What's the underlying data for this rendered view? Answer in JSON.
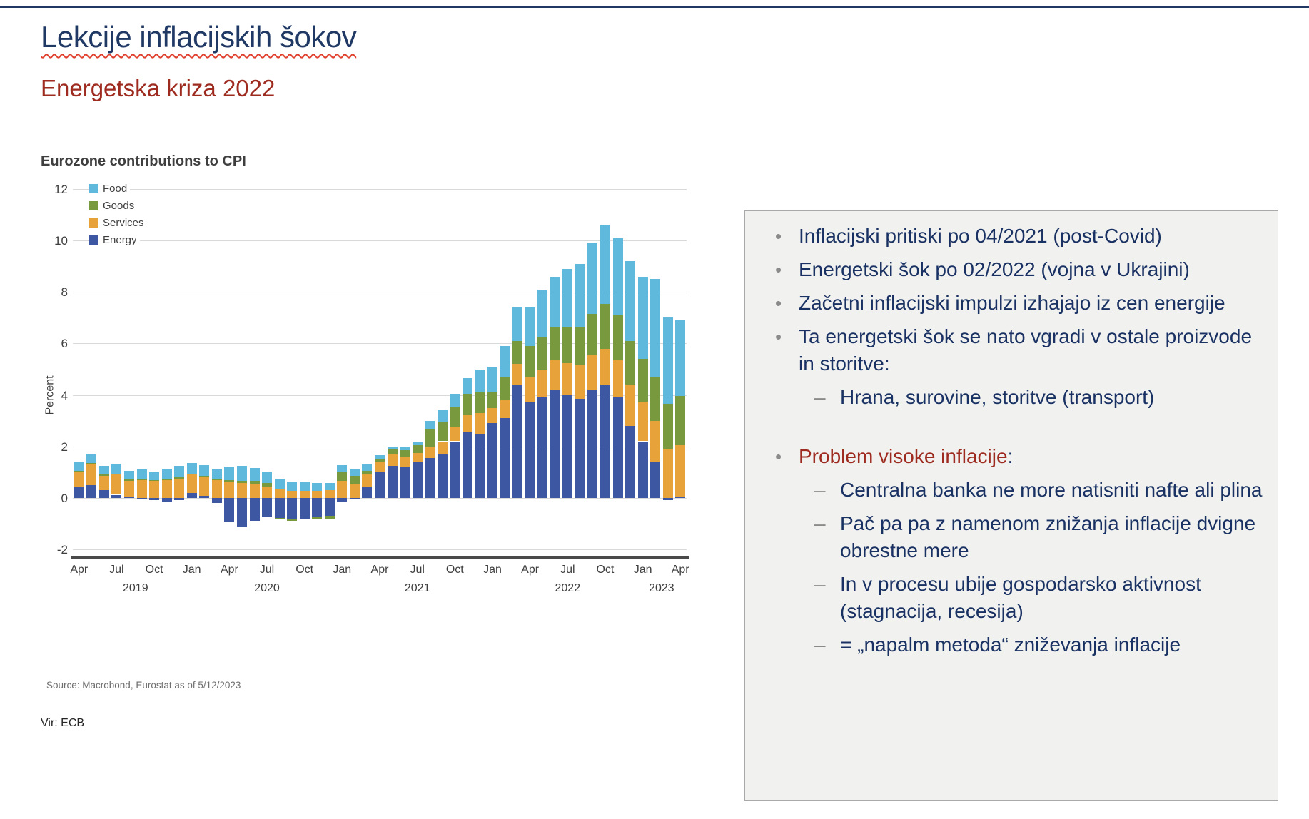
{
  "slide": {
    "title": "Lekcije inflacijskih šokov",
    "subtitle": "Energetska kriza 2022",
    "footnote": "Vir: ECB",
    "accent_navy": "#1F3864",
    "accent_red": "#9E2B1F"
  },
  "chart_data": {
    "type": "bar",
    "stacked": true,
    "title": "Eurozone contributions to CPI",
    "ylabel": "Percent",
    "ylim": [
      -2,
      12
    ],
    "yticks": [
      12,
      10,
      8,
      6,
      4,
      2,
      0,
      -2
    ],
    "grid": true,
    "legend_position": "top-left",
    "source": "Source: Macrobond, Eurostat as of 5/12/2023",
    "xtick_every": 3,
    "categories": [
      "Apr 2019",
      "May 2019",
      "Jun 2019",
      "Jul 2019",
      "Aug 2019",
      "Sep 2019",
      "Oct 2019",
      "Nov 2019",
      "Dec 2019",
      "Jan 2020",
      "Feb 2020",
      "Mar 2020",
      "Apr 2020",
      "May 2020",
      "Jun 2020",
      "Jul 2020",
      "Aug 2020",
      "Sep 2020",
      "Oct 2020",
      "Nov 2020",
      "Dec 2020",
      "Jan 2021",
      "Feb 2021",
      "Mar 2021",
      "Apr 2021",
      "May 2021",
      "Jun 2021",
      "Jul 2021",
      "Aug 2021",
      "Sep 2021",
      "Oct 2021",
      "Nov 2021",
      "Dec 2021",
      "Jan 2022",
      "Feb 2022",
      "Mar 2022",
      "Apr 2022",
      "May 2022",
      "Jun 2022",
      "Jul 2022",
      "Aug 2022",
      "Sep 2022",
      "Oct 2022",
      "Nov 2022",
      "Dec 2022",
      "Jan 2023",
      "Feb 2023",
      "Mar 2023",
      "Apr 2023"
    ],
    "year_labels": [
      {
        "label": "2019",
        "at": 4.5
      },
      {
        "label": "2020",
        "at": 15
      },
      {
        "label": "2021",
        "at": 27
      },
      {
        "label": "2022",
        "at": 39
      },
      {
        "label": "2023",
        "at": 46.5
      }
    ],
    "stack_order_bottom_to_top": [
      "Energy",
      "Services",
      "Goods",
      "Food"
    ],
    "series": [
      {
        "name": "Food",
        "color": "#5FB9DD",
        "values": [
          0.35,
          0.38,
          0.35,
          0.35,
          0.33,
          0.35,
          0.33,
          0.38,
          0.45,
          0.4,
          0.42,
          0.4,
          0.55,
          0.58,
          0.52,
          0.45,
          0.4,
          0.35,
          0.32,
          0.3,
          0.28,
          0.28,
          0.25,
          0.25,
          0.15,
          0.12,
          0.15,
          0.15,
          0.35,
          0.45,
          0.5,
          0.6,
          0.85,
          1.0,
          1.2,
          1.3,
          1.5,
          1.85,
          1.95,
          2.25,
          2.45,
          2.75,
          3.05,
          3.0,
          3.1,
          3.2,
          3.8,
          3.35,
          2.95
        ]
      },
      {
        "name": "Goods",
        "color": "#79993E",
        "values": [
          0.05,
          0.05,
          0.05,
          0.05,
          0.05,
          0.05,
          0.05,
          0.05,
          0.05,
          0.05,
          0.05,
          0.05,
          0.08,
          0.08,
          0.1,
          0.12,
          -0.05,
          -0.08,
          -0.05,
          -0.08,
          -0.1,
          0.35,
          0.3,
          0.15,
          0.12,
          0.18,
          0.25,
          0.3,
          0.65,
          0.75,
          0.8,
          0.85,
          0.8,
          0.6,
          0.9,
          0.9,
          1.2,
          1.3,
          1.3,
          1.4,
          1.5,
          1.6,
          1.75,
          1.75,
          1.7,
          1.65,
          1.7,
          1.75,
          1.9
        ]
      },
      {
        "name": "Services",
        "color": "#E7A33A",
        "values": [
          0.55,
          0.8,
          0.55,
          0.78,
          0.65,
          0.7,
          0.65,
          0.7,
          0.75,
          0.7,
          0.72,
          0.68,
          0.6,
          0.58,
          0.55,
          0.45,
          0.35,
          0.28,
          0.28,
          0.28,
          0.3,
          0.65,
          0.55,
          0.45,
          0.4,
          0.45,
          0.4,
          0.35,
          0.45,
          0.5,
          0.55,
          0.65,
          0.8,
          0.6,
          0.7,
          0.8,
          1.0,
          1.05,
          1.15,
          1.25,
          1.3,
          1.35,
          1.4,
          1.45,
          1.6,
          1.55,
          1.6,
          1.9,
          2.0
        ]
      },
      {
        "name": "Energy",
        "color": "#3D57A3",
        "values": [
          0.45,
          0.5,
          0.3,
          0.12,
          0.02,
          -0.05,
          -0.1,
          -0.15,
          -0.08,
          0.2,
          0.08,
          -0.2,
          -0.95,
          -1.15,
          -0.9,
          -0.75,
          -0.78,
          -0.8,
          -0.8,
          -0.75,
          -0.7,
          -0.15,
          -0.05,
          0.45,
          1.0,
          1.25,
          1.2,
          1.4,
          1.55,
          1.7,
          2.2,
          2.55,
          2.5,
          2.9,
          3.1,
          4.4,
          3.7,
          3.9,
          4.2,
          4.0,
          3.85,
          4.2,
          4.4,
          3.9,
          2.8,
          2.2,
          1.4,
          -0.1,
          0.05
        ]
      }
    ]
  },
  "right_panel": {
    "bullets": [
      {
        "level": 1,
        "text": "Inflacijski pritiski po 04/2021 (post-Covid)"
      },
      {
        "level": 1,
        "text": "Energetski šok po 02/2022 (vojna v Ukrajini)"
      },
      {
        "level": 1,
        "text": "Začetni inflacijski impulzi izhajajo iz cen energije"
      },
      {
        "level": 1,
        "text": "Ta energetski šok se nato vgradi v ostale proizvode in storitve:"
      },
      {
        "level": 2,
        "text": "Hrana, surovine, storitve (transport)"
      },
      {
        "level": 0,
        "text": ""
      },
      {
        "level": 1,
        "text": "Problem visoke inflacije",
        "suffix": ":",
        "color": "#9E2B1F"
      },
      {
        "level": 2,
        "text": "Centralna banka ne more natisniti nafte ali plina"
      },
      {
        "level": 2,
        "text": "Pač pa pa z namenom znižanja inflacije dvigne obrestne mere"
      },
      {
        "level": 2,
        "text": "In v procesu ubije gospodarsko aktivnost (stagnacija, recesija)"
      },
      {
        "level": 2,
        "text": "= „napalm metoda“ zniževanja inflacije"
      }
    ]
  }
}
